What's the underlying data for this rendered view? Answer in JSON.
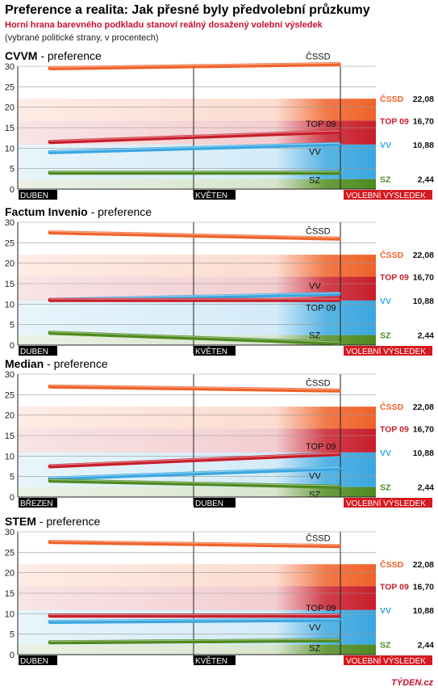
{
  "header": {
    "title": "Preference a realita: Jak přesné byly předvolební průzkumy",
    "subtitle": "Horní hrana barevného podkladu stanoví reálný dosažený volební výsledek",
    "note": "(vybrané politické strany, v procentech)"
  },
  "logo": "TÝDEN.cz",
  "colors": {
    "cssd": "#f0622a",
    "top09": "#c81e2b",
    "vv": "#3aa7e0",
    "sz": "#4e8a1f",
    "result_bar": "#d71920"
  },
  "results": {
    "label": "VOLEBNÍ VÝSLEDEK",
    "values": [
      {
        "party": "ČSSD",
        "value": 22.08,
        "value_text": "22,08",
        "color": "#f0622a"
      },
      {
        "party": "TOP 09",
        "value": 16.7,
        "value_text": "16,70",
        "color": "#c81e2b"
      },
      {
        "party": "VV",
        "value": 10.88,
        "value_text": "10,88",
        "color": "#3aa7e0"
      },
      {
        "party": "SZ",
        "value": 2.44,
        "value_text": "2,44",
        "color": "#4e8a1f"
      }
    ]
  },
  "chart_data": [
    {
      "type": "line",
      "title": "CVVM",
      "title_suffix": " - preference",
      "ylim": [
        0,
        30
      ],
      "yticks": [
        0,
        5,
        10,
        15,
        20,
        25,
        30
      ],
      "x_start_label": "DUBEN",
      "x_mid_label": "KVĚTEN",
      "series": [
        {
          "name": "ČSSD",
          "values": [
            29.5,
            30.5
          ],
          "color": "#f0622a",
          "label_side": "above"
        },
        {
          "name": "TOP 09",
          "values": [
            11.5,
            14.0
          ],
          "color": "#c81e2b",
          "label_side": "above"
        },
        {
          "name": "VV",
          "values": [
            9.0,
            11.0
          ],
          "color": "#3aa7e0",
          "label_side": "below"
        },
        {
          "name": "SZ",
          "values": [
            4.0,
            4.0
          ],
          "color": "#4e8a1f",
          "label_side": "below"
        }
      ]
    },
    {
      "type": "line",
      "title": "Factum Invenio",
      "title_suffix": " - preference",
      "ylim": [
        0,
        30
      ],
      "yticks": [
        0,
        5,
        10,
        15,
        20,
        25,
        30
      ],
      "x_start_label": "DUBEN",
      "x_mid_label": "KVĚTEN",
      "series": [
        {
          "name": "ČSSD",
          "values": [
            27.5,
            26.0
          ],
          "color": "#f0622a",
          "label_side": "above"
        },
        {
          "name": "VV",
          "values": [
            11.0,
            12.5
          ],
          "color": "#3aa7e0",
          "label_side": "above"
        },
        {
          "name": "TOP 09",
          "values": [
            11.0,
            11.0
          ],
          "color": "#c81e2b",
          "label_side": "below"
        },
        {
          "name": "SZ",
          "values": [
            3.0,
            0.5
          ],
          "color": "#4e8a1f",
          "label_side": "above"
        }
      ]
    },
    {
      "type": "line",
      "title": "Median",
      "title_suffix": " - preference",
      "ylim": [
        0,
        30
      ],
      "yticks": [
        0,
        5,
        10,
        15,
        20,
        25,
        30
      ],
      "x_start_label": "BŘEZEN",
      "x_mid_label": "DUBEN",
      "series": [
        {
          "name": "ČSSD",
          "values": [
            27.0,
            26.0
          ],
          "color": "#f0622a",
          "label_side": "above"
        },
        {
          "name": "TOP 09",
          "values": [
            7.5,
            10.5
          ],
          "color": "#c81e2b",
          "label_side": "above"
        },
        {
          "name": "VV",
          "values": [
            4.5,
            7.0
          ],
          "color": "#3aa7e0",
          "label_side": "below"
        },
        {
          "name": "SZ",
          "values": [
            4.0,
            2.5
          ],
          "color": "#4e8a1f",
          "label_side": "below"
        }
      ]
    },
    {
      "type": "line",
      "title": "STEM",
      "title_suffix": " - preference",
      "ylim": [
        0,
        30
      ],
      "yticks": [
        0,
        5,
        10,
        15,
        20,
        25,
        30
      ],
      "x_start_label": "DUBEN",
      "x_mid_label": "KVĚTEN",
      "series": [
        {
          "name": "ČSSD",
          "values": [
            27.5,
            26.5
          ],
          "color": "#f0622a",
          "label_side": "above"
        },
        {
          "name": "TOP 09",
          "values": [
            9.5,
            9.5
          ],
          "color": "#c81e2b",
          "label_side": "above"
        },
        {
          "name": "VV",
          "values": [
            8.0,
            8.5
          ],
          "color": "#3aa7e0",
          "label_side": "below"
        },
        {
          "name": "SZ",
          "values": [
            3.0,
            3.5
          ],
          "color": "#4e8a1f",
          "label_side": "below"
        }
      ]
    }
  ]
}
